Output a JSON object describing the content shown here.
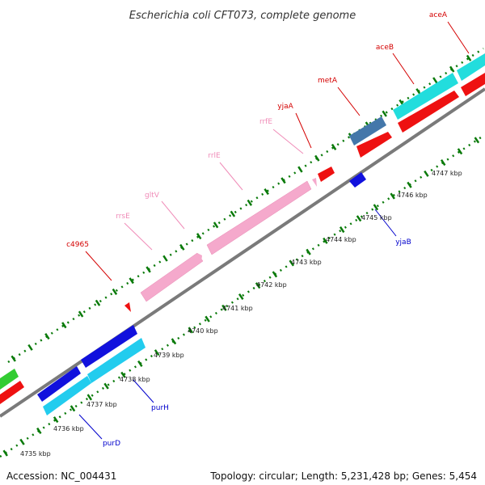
{
  "title": "Escherichia coli CFT073, complete genome",
  "footer": {
    "accession": "Accession: NC_004431",
    "summary": "Topology: circular; Length: 5,231,428 bp; Genes: 5,454"
  },
  "tick_labels": [
    "4735 kbp",
    "4736 kbp",
    "4737 kbp",
    "4738 kbp",
    "4739 kbp",
    "4740 kbp",
    "4741 kbp",
    "4742 kbp",
    "4743 kbp",
    "4744 kbp",
    "4745 kbp",
    "4746 kbp",
    "4747 kbp"
  ],
  "colors": {
    "label_red": "#d40000",
    "label_pink": "#f08cb8",
    "label_blue": "#0000cc",
    "backbone": "#7a7a7a",
    "tick_green": "#0a7a0a"
  },
  "features": {
    "top": [
      {
        "label": "c4965",
        "color": "#d40000"
      },
      {
        "label": "rrsE",
        "color": "#f08cb8"
      },
      {
        "label": "gltV",
        "color": "#f08cb8"
      },
      {
        "label": "rrlE",
        "color": "#f08cb8"
      },
      {
        "label": "rrfE",
        "color": "#f08cb8"
      },
      {
        "label": "yjaA",
        "color": "#d40000"
      },
      {
        "label": "metA",
        "color": "#d40000"
      },
      {
        "label": "aceB",
        "color": "#d40000"
      },
      {
        "label": "aceA",
        "color": "#d40000"
      }
    ],
    "bottom": [
      {
        "label": "purD",
        "color": "#0000cc"
      },
      {
        "label": "purH",
        "color": "#0000cc"
      },
      {
        "label": "yjaB",
        "color": "#0000cc"
      }
    ]
  }
}
